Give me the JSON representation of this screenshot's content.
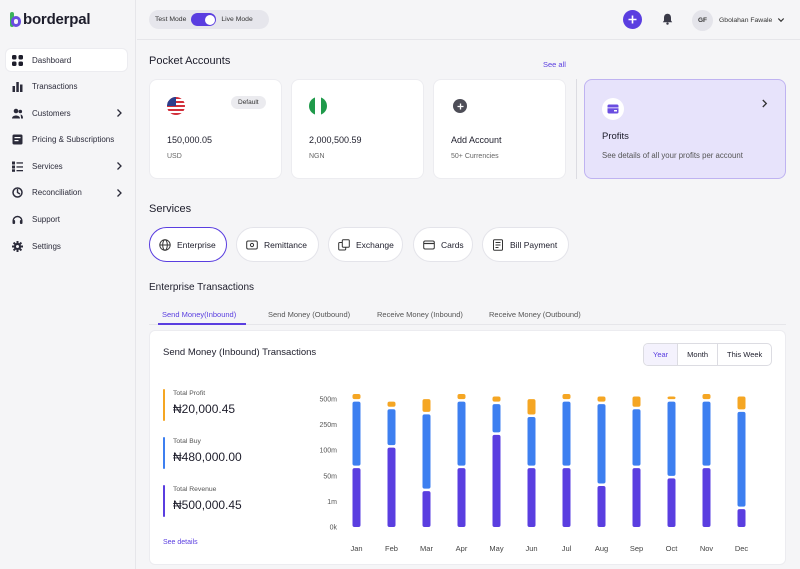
{
  "brand": {
    "name": "borderpal"
  },
  "sidebar": {
    "items": [
      {
        "label": "Dashboard",
        "icon": "grid-icon",
        "active": true,
        "chevron": false
      },
      {
        "label": "Transactions",
        "icon": "bar-chart-icon",
        "active": false,
        "chevron": false
      },
      {
        "label": "Customers",
        "icon": "users-icon",
        "active": false,
        "chevron": true
      },
      {
        "label": "Pricing & Subscriptions",
        "icon": "price-tag-icon",
        "active": false,
        "chevron": false
      },
      {
        "label": "Services",
        "icon": "services-icon",
        "active": false,
        "chevron": true
      },
      {
        "label": "Reconciliation",
        "icon": "reconcile-icon",
        "active": false,
        "chevron": true
      },
      {
        "label": "Support",
        "icon": "headset-icon",
        "active": false,
        "chevron": false
      },
      {
        "label": "Settings",
        "icon": "gear-icon",
        "active": false,
        "chevron": false
      }
    ]
  },
  "topbar": {
    "test_mode": "Test Mode",
    "live_mode": "Live Mode",
    "user_initials": "GF",
    "user_name": "Gbolahan Fawale"
  },
  "pocket": {
    "title": "Pocket Accounts",
    "see_all": "See all",
    "accounts": [
      {
        "amount": "150,000.05",
        "currency": "USD",
        "badge": "Default",
        "flag": "us-flag-icon"
      },
      {
        "amount": "2,000,500.59",
        "currency": "NGN",
        "flag": "ng-flag-icon"
      }
    ],
    "add": {
      "title": "Add Account",
      "sub": "50+ Currencies"
    },
    "profits": {
      "title": "Profits",
      "sub": "See details of all your profits per account"
    }
  },
  "services": {
    "title": "Services",
    "items": [
      {
        "label": "Enterprise",
        "icon": "globe-icon",
        "active": true
      },
      {
        "label": "Remittance",
        "icon": "remittance-icon",
        "active": false
      },
      {
        "label": "Exchange",
        "icon": "exchange-icon",
        "active": false
      },
      {
        "label": "Cards",
        "icon": "card-icon",
        "active": false
      },
      {
        "label": "Bill Payment",
        "icon": "bill-icon",
        "active": false
      }
    ]
  },
  "enterprise": {
    "title": "Enterprise Transactions",
    "tabs": [
      "Send Money(Inbound)",
      "Send Money (Outbound)",
      "Receive Money (Inbound)",
      "Receive Money (Outbound)"
    ],
    "panel_title": "Send Money (Inbound) Transactions",
    "periods": [
      "Year",
      "Month",
      "This Week"
    ],
    "stats": [
      {
        "label": "Total Profit",
        "value": "₦20,000.45",
        "color": "#f5a623"
      },
      {
        "label": "Total Buy",
        "value": "₦480,000.00",
        "color": "#3d7ff0"
      },
      {
        "label": "Total Revenue",
        "value": "₦500,000.45",
        "color": "#5a3ee0"
      }
    ],
    "see_details": "See details"
  },
  "chart_data": {
    "type": "bar",
    "stacked": true,
    "categories": [
      "Jan",
      "Feb",
      "Mar",
      "Apr",
      "May",
      "Jun",
      "Jul",
      "Aug",
      "Sep",
      "Oct",
      "Nov",
      "Dec"
    ],
    "y_ticks": [
      "0k",
      "1m",
      "50m",
      "100m",
      "250m",
      "500m"
    ],
    "series": [
      {
        "color": "#5a3ee0",
        "values": [
          2.3,
          3.1,
          1.4,
          2.3,
          3.6,
          2.3,
          2.3,
          1.6,
          2.3,
          1.9,
          2.3,
          0.7
        ]
      },
      {
        "color": "#3d7ff0",
        "values": [
          2.5,
          1.4,
          2.9,
          2.5,
          1.1,
          1.9,
          2.5,
          3.1,
          2.2,
          2.9,
          2.5,
          3.7
        ]
      },
      {
        "color": "#f5a623",
        "values": [
          0.2,
          0.2,
          0.5,
          0.2,
          0.2,
          0.6,
          0.2,
          0.2,
          0.4,
          0.1,
          0.2,
          0.5
        ]
      }
    ],
    "colors": {
      "revenue": "#5a3ee0",
      "buy": "#3d7ff0",
      "profit": "#f5a623"
    }
  }
}
